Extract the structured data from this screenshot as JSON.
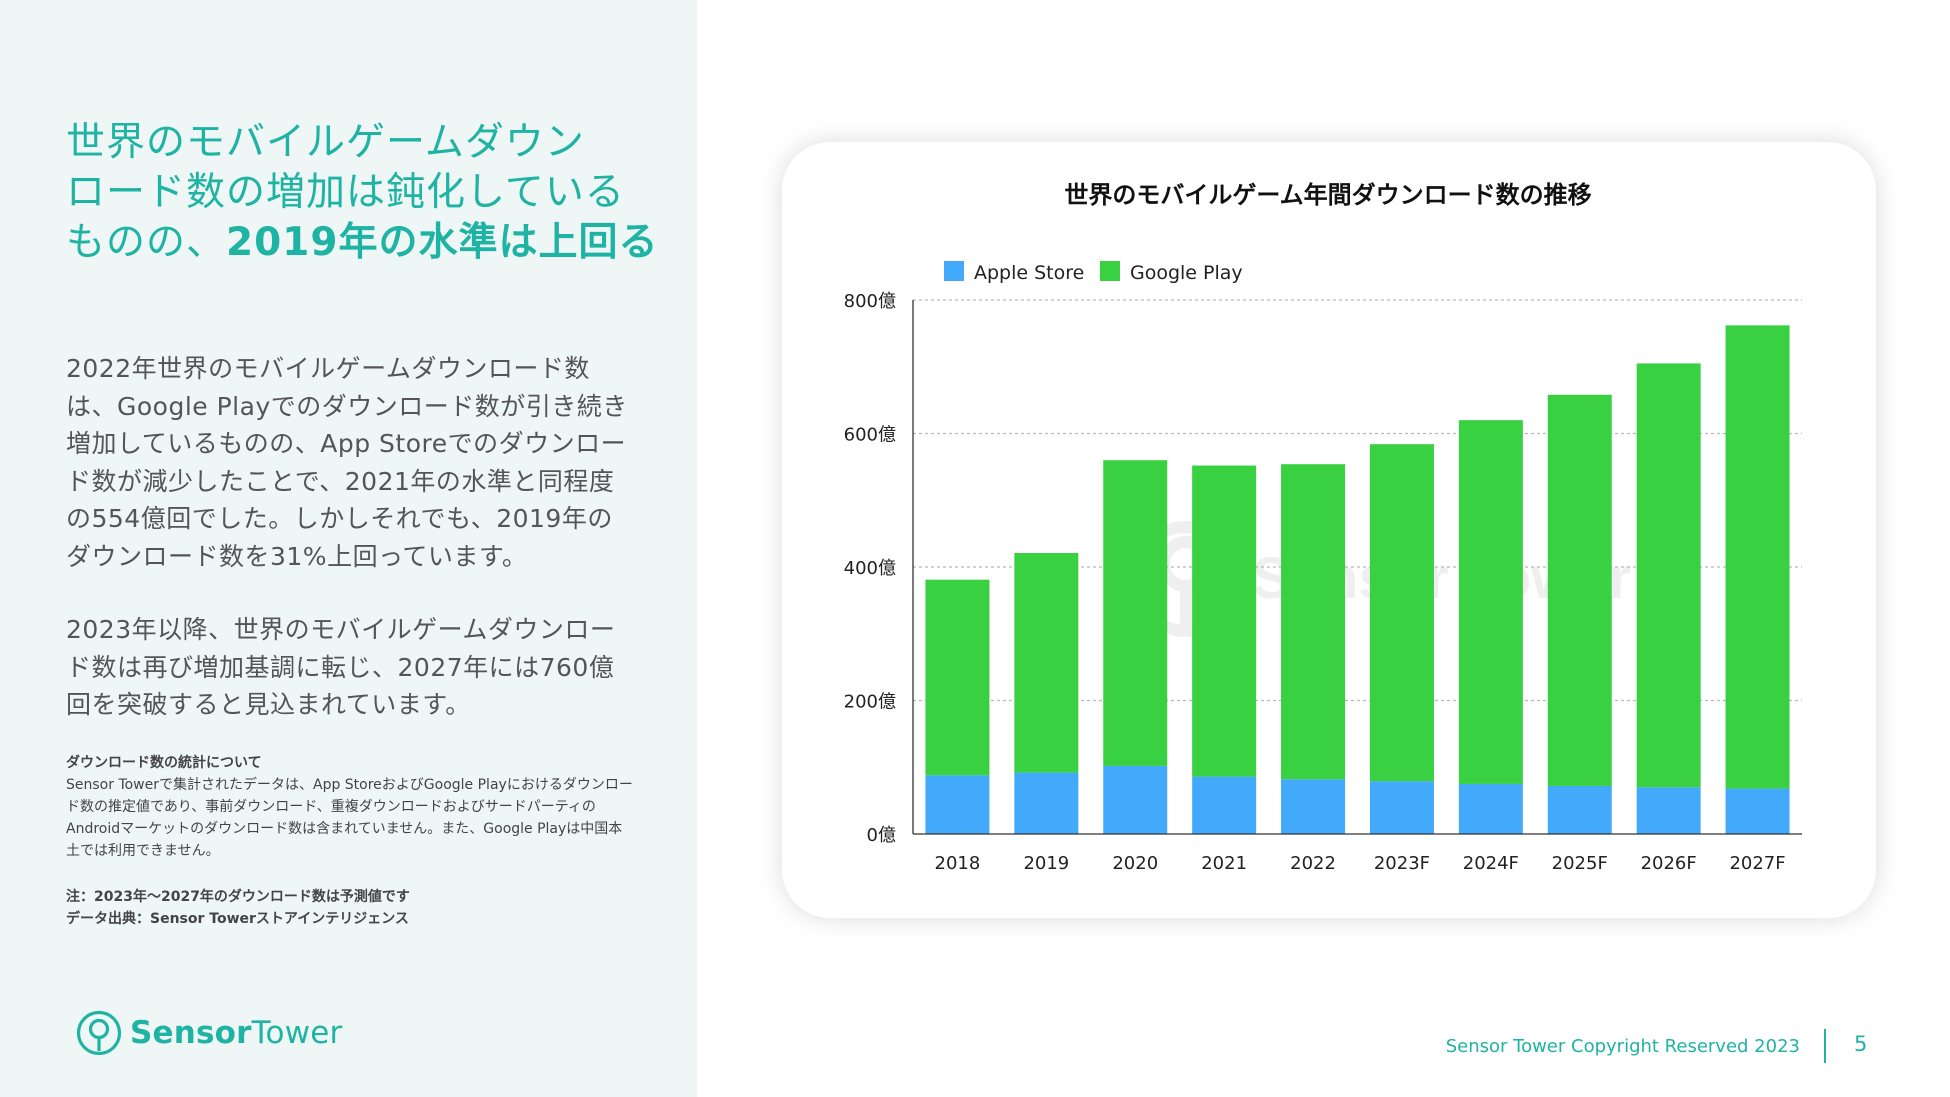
{
  "headline": {
    "line1": "世界のモバイルゲームダウン",
    "line2": "ロード数の増加は鈍化している",
    "line3_normal": "ものの、",
    "line3_bold": "2019年の水準は上回る"
  },
  "paragraph1": "2022年世界のモバイルゲームダウンロード数は、Google Playでのダウンロード数が引き続き増加しているものの、App Storeでのダウンロード数が減少したことで、2021年の水準と同程度の554億回でした。しかしそれでも、2019年のダウンロード数を31%上回っています。",
  "paragraph2": "2023年以降、世界のモバイルゲームダウンロード数は再び増加基調に転じ、2027年には760億回を突破すると見込まれています。",
  "notes": {
    "title": "ダウンロード数の統計について",
    "body": "Sensor Towerで集計されたデータは、App StoreおよびGoogle Playにおけるダウンロード数の推定値であり、事前ダウンロード、重複ダウンロードおよびサードパーティのAndroidマーケットのダウンロード数は含まれていません。また、Google Playは中国本土では利用できません。"
  },
  "footnotes": {
    "note": "注：2023年～2027年のダウンロード数は予測値です",
    "source": "データ出典：Sensor Towerストアインテリジェンス"
  },
  "logo": {
    "part1": "Sensor",
    "part2": "Tower",
    "icon": "sensor-tower-logo-icon"
  },
  "footer": {
    "copyright": "Sensor Tower Copyright Reserved 2023",
    "page_number": "5"
  },
  "watermark": "Sensor Tower",
  "colors": {
    "accent": "#1fb3a3",
    "apple": "#42a9fb",
    "google": "#39d042"
  },
  "chart_data": {
    "type": "bar",
    "stacked": true,
    "title": "世界のモバイルゲーム年間ダウンロード数の推移",
    "categories": [
      "2018",
      "2019",
      "2020",
      "2021",
      "2022",
      "2023F",
      "2024F",
      "2025F",
      "2026F",
      "2027F"
    ],
    "series": [
      {
        "name": "Apple Store",
        "color": "#42a9fb",
        "values": [
          88,
          92,
          102,
          86,
          82,
          79,
          75,
          72,
          70,
          68
        ]
      },
      {
        "name": "Google Play",
        "color": "#39d042",
        "values": [
          293,
          329,
          458,
          466,
          472,
          505,
          545,
          586,
          635,
          694
        ]
      }
    ],
    "yticks": [
      "0億",
      "200億",
      "400億",
      "600億",
      "800億"
    ],
    "ylim": [
      0,
      800
    ],
    "grid": true,
    "legend": "top-left"
  }
}
